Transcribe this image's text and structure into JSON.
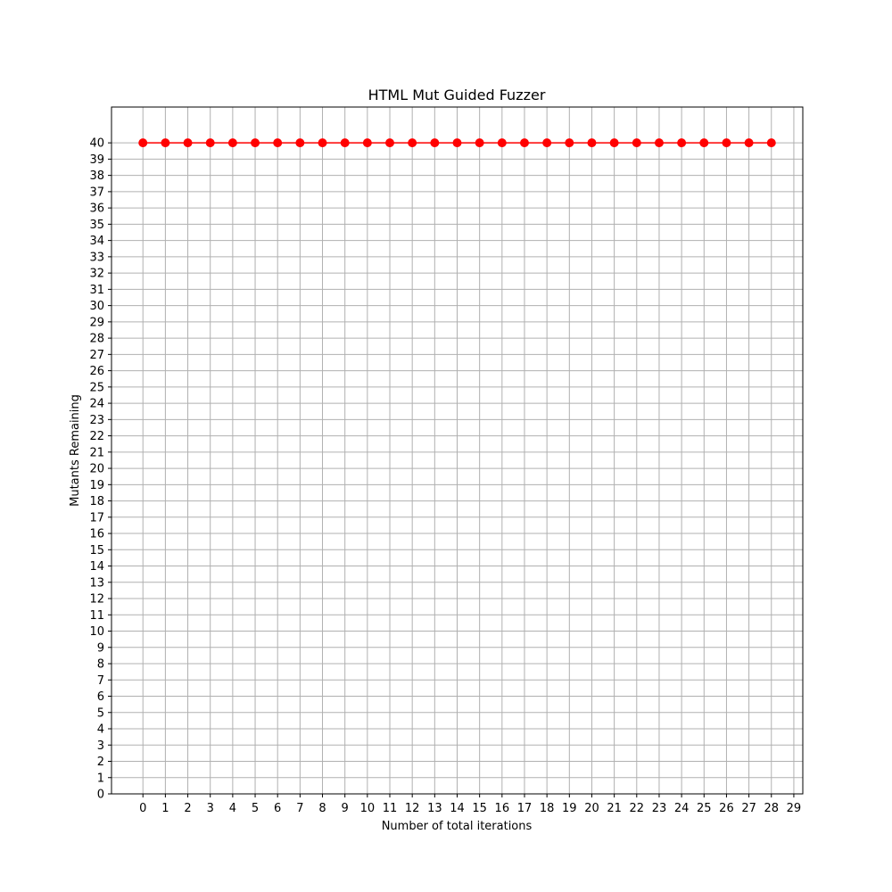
{
  "chart_data": {
    "type": "line",
    "title": "HTML Mut Guided Fuzzer",
    "xlabel": "Number of total iterations",
    "ylabel": "Mutants Remaining",
    "x_ticks": [
      0,
      1,
      2,
      3,
      4,
      5,
      6,
      7,
      8,
      9,
      10,
      11,
      12,
      13,
      14,
      15,
      16,
      17,
      18,
      19,
      20,
      21,
      22,
      23,
      24,
      25,
      26,
      27,
      28,
      29
    ],
    "y_ticks": [
      0,
      1,
      2,
      3,
      4,
      5,
      6,
      7,
      8,
      9,
      10,
      11,
      12,
      13,
      14,
      15,
      16,
      17,
      18,
      19,
      20,
      21,
      22,
      23,
      24,
      25,
      26,
      27,
      28,
      29,
      30,
      31,
      32,
      33,
      34,
      35,
      36,
      37,
      38,
      39,
      40
    ],
    "xlim": [
      -1.4,
      29.4
    ],
    "ylim": [
      0,
      42.2
    ],
    "grid": true,
    "series": [
      {
        "color": "#ff0000",
        "marker": "circle",
        "x": [
          0,
          1,
          2,
          3,
          4,
          5,
          6,
          7,
          8,
          9,
          10,
          11,
          12,
          13,
          14,
          15,
          16,
          17,
          18,
          19,
          20,
          21,
          22,
          23,
          24,
          25,
          26,
          27,
          28
        ],
        "y": [
          40,
          40,
          40,
          40,
          40,
          40,
          40,
          40,
          40,
          40,
          40,
          40,
          40,
          40,
          40,
          40,
          40,
          40,
          40,
          40,
          40,
          40,
          40,
          40,
          40,
          40,
          40,
          40,
          40
        ]
      }
    ]
  }
}
